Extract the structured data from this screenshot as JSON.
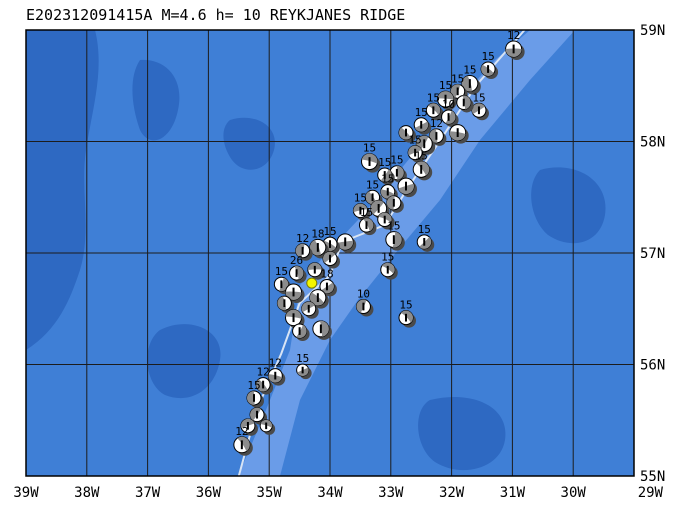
{
  "title": "E202312091415A M=4.6 h= 10 REYKJANES RIDGE",
  "map": {
    "lon_range": [
      -39,
      -29
    ],
    "lat_range": [
      55,
      59
    ],
    "x_tick_labels": [
      "39W",
      "38W",
      "37W",
      "36W",
      "35W",
      "34W",
      "33W",
      "32W",
      "31W",
      "30W",
      "29W"
    ],
    "y_tick_labels": [
      "59N",
      "58N",
      "57N",
      "56N",
      "55N"
    ],
    "colors": {
      "ocean": "#3f7fd6",
      "deep_basin": "#2e69c2",
      "ridge_crest": "#6a9ce8",
      "plate_boundary": "#d8e4f5",
      "grid": "#1c1c1c",
      "mechanism_fill": "#ffffff",
      "mechanism_shade": "#8c8c8c",
      "event_marker": "#f5f500"
    },
    "event": {
      "lon": -34.3,
      "lat": 56.73
    },
    "plate_boundary": [
      [
        -35.5,
        55.0
      ],
      [
        -35.2,
        55.6
      ],
      [
        -34.8,
        56.1
      ],
      [
        -34.5,
        56.55
      ],
      [
        -34.0,
        56.8
      ],
      [
        -33.8,
        57.1
      ],
      [
        -33.1,
        57.25
      ],
      [
        -32.7,
        57.6
      ],
      [
        -32.2,
        58.0
      ],
      [
        -31.6,
        58.5
      ],
      [
        -30.8,
        59.0
      ]
    ],
    "mechanisms": [
      {
        "lon": -30.98,
        "lat": 58.83,
        "r": 8,
        "label": "12"
      },
      {
        "lon": -31.4,
        "lat": 58.65,
        "r": 7,
        "label": "15"
      },
      {
        "lon": -31.7,
        "lat": 58.52,
        "r": 8,
        "label": "15"
      },
      {
        "lon": -31.9,
        "lat": 58.45,
        "r": 7,
        "label": "15"
      },
      {
        "lon": -31.55,
        "lat": 58.28,
        "r": 7,
        "label": "15"
      },
      {
        "lon": -32.1,
        "lat": 58.38,
        "r": 8,
        "label": "15"
      },
      {
        "lon": -32.3,
        "lat": 58.28,
        "r": 7,
        "label": "15"
      },
      {
        "lon": -31.8,
        "lat": 58.35,
        "r": 7,
        "label": ""
      },
      {
        "lon": -32.05,
        "lat": 58.22,
        "r": 7,
        "label": "10"
      },
      {
        "lon": -32.5,
        "lat": 58.15,
        "r": 7,
        "label": "15"
      },
      {
        "lon": -31.9,
        "lat": 58.08,
        "r": 8,
        "label": ""
      },
      {
        "lon": -32.75,
        "lat": 58.08,
        "r": 7,
        "label": ""
      },
      {
        "lon": -32.25,
        "lat": 58.05,
        "r": 7,
        "label": "12"
      },
      {
        "lon": -32.45,
        "lat": 57.98,
        "r": 8,
        "label": ""
      },
      {
        "lon": -32.6,
        "lat": 57.9,
        "r": 7,
        "label": "15"
      },
      {
        "lon": -33.35,
        "lat": 57.82,
        "r": 8,
        "label": "15"
      },
      {
        "lon": -32.5,
        "lat": 57.75,
        "r": 8,
        "label": "15"
      },
      {
        "lon": -32.9,
        "lat": 57.72,
        "r": 7,
        "label": "15"
      },
      {
        "lon": -33.1,
        "lat": 57.7,
        "r": 7,
        "label": "15"
      },
      {
        "lon": -32.75,
        "lat": 57.6,
        "r": 8,
        "label": ""
      },
      {
        "lon": -33.05,
        "lat": 57.55,
        "r": 7,
        "label": "15"
      },
      {
        "lon": -33.3,
        "lat": 57.5,
        "r": 7,
        "label": "15"
      },
      {
        "lon": -32.95,
        "lat": 57.45,
        "r": 7,
        "label": ""
      },
      {
        "lon": -33.2,
        "lat": 57.4,
        "r": 8,
        "label": ""
      },
      {
        "lon": -33.5,
        "lat": 57.38,
        "r": 7,
        "label": "15"
      },
      {
        "lon": -33.1,
        "lat": 57.3,
        "r": 7,
        "label": ""
      },
      {
        "lon": -33.4,
        "lat": 57.25,
        "r": 7,
        "label": "15"
      },
      {
        "lon": -32.95,
        "lat": 57.12,
        "r": 8,
        "label": "15"
      },
      {
        "lon": -32.45,
        "lat": 57.1,
        "r": 7,
        "label": "15"
      },
      {
        "lon": -33.75,
        "lat": 57.1,
        "r": 8,
        "label": ""
      },
      {
        "lon": -34.0,
        "lat": 57.08,
        "r": 7,
        "label": "15"
      },
      {
        "lon": -34.2,
        "lat": 57.05,
        "r": 8,
        "label": "18"
      },
      {
        "lon": -34.45,
        "lat": 57.02,
        "r": 7,
        "label": "12"
      },
      {
        "lon": -34.0,
        "lat": 56.95,
        "r": 7,
        "label": ""
      },
      {
        "lon": -34.25,
        "lat": 56.85,
        "r": 7,
        "label": ""
      },
      {
        "lon": -33.05,
        "lat": 56.85,
        "r": 7,
        "label": "15"
      },
      {
        "lon": -34.55,
        "lat": 56.82,
        "r": 7,
        "label": "26"
      },
      {
        "lon": -34.8,
        "lat": 56.72,
        "r": 7,
        "label": "15"
      },
      {
        "lon": -34.05,
        "lat": 56.7,
        "r": 7,
        "label": "18"
      },
      {
        "lon": -34.6,
        "lat": 56.65,
        "r": 8,
        "label": ""
      },
      {
        "lon": -34.2,
        "lat": 56.6,
        "r": 8,
        "label": ""
      },
      {
        "lon": -34.75,
        "lat": 56.55,
        "r": 7,
        "label": ""
      },
      {
        "lon": -33.45,
        "lat": 56.52,
        "r": 7,
        "label": "10"
      },
      {
        "lon": -34.35,
        "lat": 56.5,
        "r": 7,
        "label": ""
      },
      {
        "lon": -34.6,
        "lat": 56.42,
        "r": 8,
        "label": ""
      },
      {
        "lon": -32.75,
        "lat": 56.42,
        "r": 7,
        "label": "15"
      },
      {
        "lon": -34.15,
        "lat": 56.32,
        "r": 8,
        "label": ""
      },
      {
        "lon": -34.5,
        "lat": 56.3,
        "r": 7,
        "label": ""
      },
      {
        "lon": -34.45,
        "lat": 55.95,
        "r": 6,
        "label": "15"
      },
      {
        "lon": -34.9,
        "lat": 55.9,
        "r": 7,
        "label": "12"
      },
      {
        "lon": -35.1,
        "lat": 55.82,
        "r": 7,
        "label": "12"
      },
      {
        "lon": -35.25,
        "lat": 55.7,
        "r": 7,
        "label": "15"
      },
      {
        "lon": -35.2,
        "lat": 55.55,
        "r": 7,
        "label": ""
      },
      {
        "lon": -35.35,
        "lat": 55.45,
        "r": 7,
        "label": ""
      },
      {
        "lon": -35.05,
        "lat": 55.45,
        "r": 6,
        "label": ""
      },
      {
        "lon": -35.45,
        "lat": 55.28,
        "r": 8,
        "label": "12"
      }
    ]
  }
}
